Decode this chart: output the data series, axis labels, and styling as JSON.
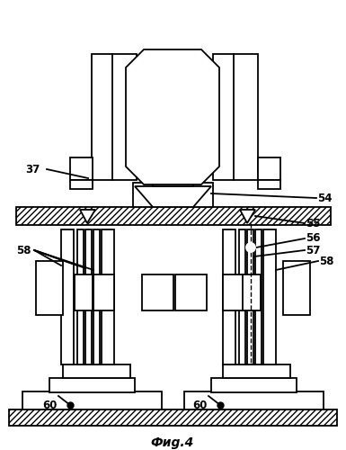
{
  "caption": "Фиg.4",
  "background": "#ffffff",
  "line_color": "#000000",
  "lw": 1.3
}
